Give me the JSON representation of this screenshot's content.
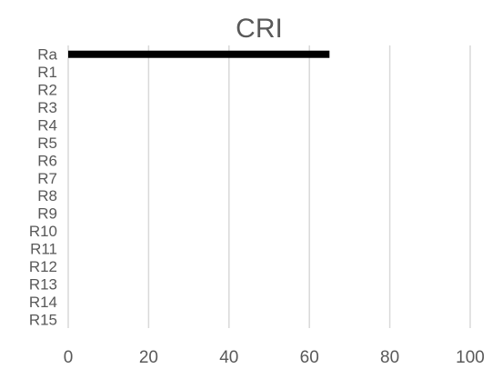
{
  "chart_data": {
    "type": "bar",
    "orientation": "horizontal",
    "title": "CRI",
    "xlabel": "",
    "ylabel": "",
    "categories": [
      "Ra",
      "R1",
      "R2",
      "R3",
      "R4",
      "R5",
      "R6",
      "R7",
      "R8",
      "R9",
      "R10",
      "R11",
      "R12",
      "R13",
      "R14",
      "R15"
    ],
    "series": [
      {
        "values": [
          65,
          null,
          null,
          null,
          null,
          null,
          null,
          null,
          null,
          null,
          null,
          null,
          null,
          null,
          null,
          null
        ],
        "color": "#000000"
      }
    ],
    "xlim": [
      0,
      100
    ],
    "x_ticks": [
      0,
      20,
      40,
      60,
      80,
      100
    ],
    "grid": "vertical",
    "grid_color": "#d9d9d9",
    "text_color": "#595959",
    "legend": "none"
  }
}
